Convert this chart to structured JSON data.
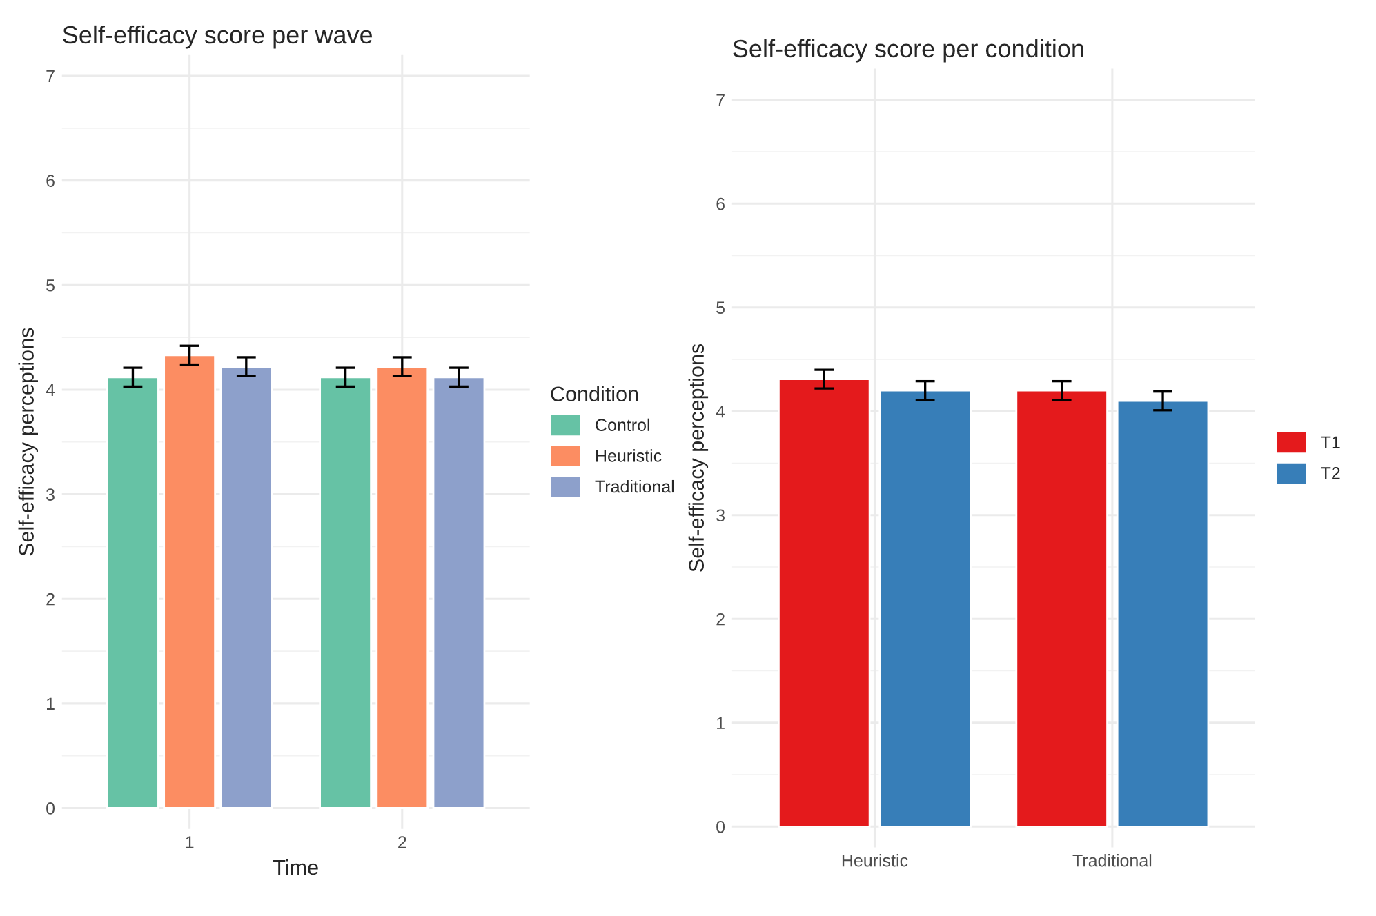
{
  "chart_data": [
    {
      "type": "bar",
      "title": "Self-efficacy score per wave",
      "xlabel": "Time",
      "ylabel": "Self-efficacy perceptions",
      "legend_title": "Condition",
      "legend": "right",
      "grid": true,
      "categories": [
        "1",
        "2"
      ],
      "ylim": [
        -0.2,
        7.2
      ],
      "yticks": [
        0,
        1,
        2,
        3,
        4,
        5,
        6,
        7
      ],
      "series": [
        {
          "name": "Control",
          "color": "#66c2a5",
          "values": [
            4.12,
            4.12
          ],
          "errors": [
            0.09,
            0.09
          ]
        },
        {
          "name": "Heuristic",
          "color": "#fc8d62",
          "values": [
            4.33,
            4.22
          ],
          "errors": [
            0.09,
            0.09
          ]
        },
        {
          "name": "Traditional",
          "color": "#8da0cb",
          "values": [
            4.22,
            4.12
          ],
          "errors": [
            0.09,
            0.09
          ]
        }
      ]
    },
    {
      "type": "bar",
      "title": "Self-efficacy score per condition",
      "ylabel": "Self-efficacy perceptions",
      "legend": "right",
      "grid": true,
      "categories": [
        "Heuristic",
        "Traditional"
      ],
      "ylim": [
        -0.2,
        7.3
      ],
      "yticks": [
        0,
        1,
        2,
        3,
        4,
        5,
        6,
        7
      ],
      "series": [
        {
          "name": "T1",
          "color": "#e41a1c",
          "values": [
            4.31,
            4.2
          ],
          "errors": [
            0.09,
            0.09
          ]
        },
        {
          "name": "T2",
          "color": "#377eb8",
          "values": [
            4.2,
            4.1
          ],
          "errors": [
            0.09,
            0.09
          ]
        }
      ]
    }
  ]
}
